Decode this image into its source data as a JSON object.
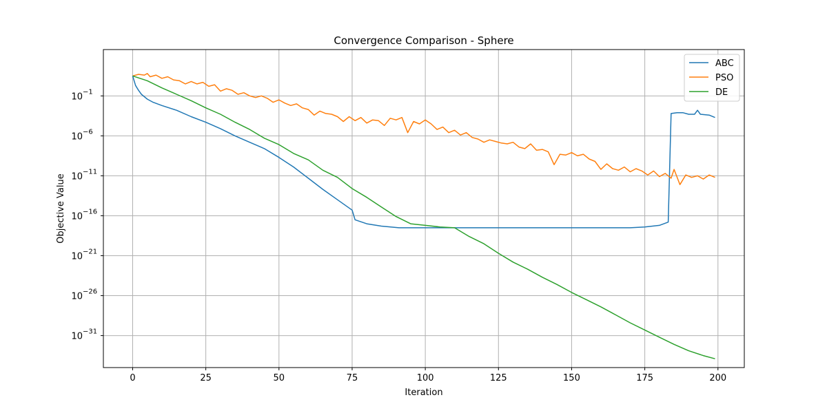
{
  "chart_data": {
    "type": "line",
    "title": "Convergence Comparison - Sphere",
    "xlabel": "Iteration",
    "ylabel": "Objective Value",
    "yscale": "log",
    "xlim": [
      -10,
      209
    ],
    "ylim_exp": [
      -35,
      4.8
    ],
    "x_ticks": [
      0,
      25,
      50,
      75,
      100,
      125,
      150,
      175,
      200
    ],
    "x_tick_labels": [
      "0",
      "25",
      "50",
      "75",
      "100",
      "125",
      "150",
      "175",
      "200"
    ],
    "y_ticks_exp": [
      -1,
      -6,
      -11,
      -16,
      -21,
      -26,
      -31
    ],
    "y_tick_bases": [
      "10",
      "10",
      "10",
      "10",
      "10",
      "10",
      "10"
    ],
    "y_tick_exponents": [
      "−1",
      "−6",
      "−11",
      "−16",
      "−21",
      "−26",
      "−31"
    ],
    "grid": true,
    "legend_position": "top-right",
    "series": [
      {
        "name": "ABC",
        "color": "#1f77b4",
        "log10_points": [
          [
            0,
            1.5
          ],
          [
            1,
            0.3
          ],
          [
            2,
            -0.3
          ],
          [
            3,
            -0.8
          ],
          [
            5,
            -1.4
          ],
          [
            7,
            -1.8
          ],
          [
            10,
            -2.2
          ],
          [
            15,
            -2.8
          ],
          [
            20,
            -3.6
          ],
          [
            25,
            -4.3
          ],
          [
            30,
            -5.1
          ],
          [
            35,
            -6.0
          ],
          [
            40,
            -6.8
          ],
          [
            45,
            -7.6
          ],
          [
            50,
            -8.7
          ],
          [
            55,
            -9.9
          ],
          [
            60,
            -11.3
          ],
          [
            65,
            -12.7
          ],
          [
            70,
            -14.0
          ],
          [
            75,
            -15.3
          ],
          [
            76,
            -16.5
          ],
          [
            80,
            -17.0
          ],
          [
            85,
            -17.3
          ],
          [
            91,
            -17.5
          ],
          [
            100,
            -17.5
          ],
          [
            125,
            -17.5
          ],
          [
            150,
            -17.5
          ],
          [
            170,
            -17.5
          ],
          [
            175,
            -17.4
          ],
          [
            180,
            -17.2
          ],
          [
            183,
            -16.8
          ],
          [
            184,
            -3.2
          ],
          [
            186,
            -3.1
          ],
          [
            188,
            -3.1
          ],
          [
            190,
            -3.3
          ],
          [
            192,
            -3.3
          ],
          [
            193,
            -2.8
          ],
          [
            194,
            -3.3
          ],
          [
            197,
            -3.4
          ],
          [
            199,
            -3.7
          ]
        ]
      },
      {
        "name": "PSO",
        "color": "#ff7f0e",
        "log10_points": [
          [
            0,
            1.5
          ],
          [
            2,
            1.7
          ],
          [
            4,
            1.6
          ],
          [
            5,
            1.8
          ],
          [
            6,
            1.4
          ],
          [
            8,
            1.6
          ],
          [
            10,
            1.2
          ],
          [
            12,
            1.4
          ],
          [
            14,
            1.0
          ],
          [
            16,
            0.9
          ],
          [
            18,
            0.5
          ],
          [
            20,
            0.8
          ],
          [
            22,
            0.5
          ],
          [
            24,
            0.7
          ],
          [
            26,
            0.2
          ],
          [
            28,
            0.4
          ],
          [
            30,
            -0.4
          ],
          [
            32,
            -0.1
          ],
          [
            34,
            -0.3
          ],
          [
            36,
            -0.8
          ],
          [
            38,
            -0.6
          ],
          [
            40,
            -1.0
          ],
          [
            42,
            -1.2
          ],
          [
            44,
            -1.0
          ],
          [
            46,
            -1.3
          ],
          [
            48,
            -1.8
          ],
          [
            50,
            -1.5
          ],
          [
            52,
            -1.9
          ],
          [
            54,
            -2.2
          ],
          [
            56,
            -2.0
          ],
          [
            58,
            -2.5
          ],
          [
            60,
            -2.7
          ],
          [
            62,
            -3.4
          ],
          [
            64,
            -2.9
          ],
          [
            66,
            -3.2
          ],
          [
            68,
            -3.3
          ],
          [
            70,
            -3.6
          ],
          [
            72,
            -4.2
          ],
          [
            74,
            -3.6
          ],
          [
            76,
            -4.1
          ],
          [
            78,
            -3.7
          ],
          [
            80,
            -4.4
          ],
          [
            82,
            -4.0
          ],
          [
            84,
            -4.1
          ],
          [
            86,
            -4.7
          ],
          [
            88,
            -3.8
          ],
          [
            90,
            -4.0
          ],
          [
            92,
            -3.7
          ],
          [
            94,
            -5.6
          ],
          [
            96,
            -4.2
          ],
          [
            98,
            -4.5
          ],
          [
            100,
            -4.0
          ],
          [
            102,
            -4.5
          ],
          [
            104,
            -5.2
          ],
          [
            106,
            -4.9
          ],
          [
            108,
            -5.6
          ],
          [
            110,
            -5.3
          ],
          [
            112,
            -5.9
          ],
          [
            114,
            -5.6
          ],
          [
            116,
            -6.2
          ],
          [
            118,
            -6.4
          ],
          [
            120,
            -6.8
          ],
          [
            122,
            -6.5
          ],
          [
            124,
            -6.7
          ],
          [
            126,
            -6.9
          ],
          [
            128,
            -7.0
          ],
          [
            130,
            -6.8
          ],
          [
            132,
            -7.4
          ],
          [
            134,
            -7.6
          ],
          [
            136,
            -7.0
          ],
          [
            138,
            -7.8
          ],
          [
            140,
            -7.7
          ],
          [
            142,
            -8.0
          ],
          [
            144,
            -9.6
          ],
          [
            146,
            -8.3
          ],
          [
            148,
            -8.4
          ],
          [
            150,
            -8.1
          ],
          [
            152,
            -8.5
          ],
          [
            154,
            -8.3
          ],
          [
            156,
            -8.9
          ],
          [
            158,
            -9.2
          ],
          [
            160,
            -10.2
          ],
          [
            162,
            -9.5
          ],
          [
            164,
            -10.1
          ],
          [
            166,
            -10.3
          ],
          [
            168,
            -9.9
          ],
          [
            170,
            -10.5
          ],
          [
            172,
            -10.1
          ],
          [
            174,
            -10.4
          ],
          [
            176,
            -10.9
          ],
          [
            178,
            -10.4
          ],
          [
            180,
            -11.1
          ],
          [
            182,
            -10.7
          ],
          [
            184,
            -11.3
          ],
          [
            185,
            -10.2
          ],
          [
            187,
            -12.1
          ],
          [
            189,
            -10.9
          ],
          [
            191,
            -11.2
          ],
          [
            193,
            -11.0
          ],
          [
            195,
            -11.4
          ],
          [
            197,
            -10.9
          ],
          [
            199,
            -11.2
          ]
        ]
      },
      {
        "name": "DE",
        "color": "#2ca02c",
        "log10_points": [
          [
            0,
            1.5
          ],
          [
            5,
            0.9
          ],
          [
            10,
            0.0
          ],
          [
            15,
            -0.8
          ],
          [
            20,
            -1.6
          ],
          [
            25,
            -2.5
          ],
          [
            30,
            -3.3
          ],
          [
            35,
            -4.3
          ],
          [
            40,
            -5.2
          ],
          [
            45,
            -6.3
          ],
          [
            50,
            -7.1
          ],
          [
            55,
            -8.2
          ],
          [
            60,
            -9.0
          ],
          [
            65,
            -10.3
          ],
          [
            70,
            -11.2
          ],
          [
            75,
            -12.6
          ],
          [
            80,
            -13.7
          ],
          [
            85,
            -14.9
          ],
          [
            90,
            -16.1
          ],
          [
            95,
            -17.0
          ],
          [
            100,
            -17.2
          ],
          [
            105,
            -17.4
          ],
          [
            110,
            -17.5
          ],
          [
            115,
            -18.6
          ],
          [
            120,
            -19.5
          ],
          [
            125,
            -20.7
          ],
          [
            130,
            -21.8
          ],
          [
            135,
            -22.7
          ],
          [
            140,
            -23.7
          ],
          [
            145,
            -24.6
          ],
          [
            150,
            -25.6
          ],
          [
            155,
            -26.5
          ],
          [
            160,
            -27.4
          ],
          [
            165,
            -28.4
          ],
          [
            170,
            -29.4
          ],
          [
            175,
            -30.3
          ],
          [
            180,
            -31.2
          ],
          [
            185,
            -32.1
          ],
          [
            190,
            -32.9
          ],
          [
            195,
            -33.5
          ],
          [
            199,
            -33.9
          ]
        ]
      }
    ]
  }
}
